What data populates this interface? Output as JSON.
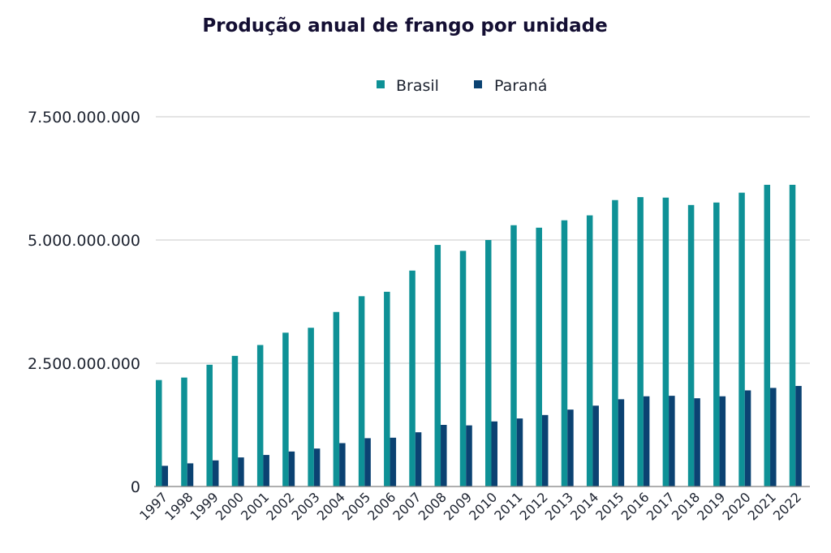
{
  "chart_data": {
    "type": "bar",
    "title": "Produção anual de frango por unidade",
    "xlabel": "",
    "ylabel": "",
    "ylim": [
      0,
      7500000000
    ],
    "yticks": [
      0,
      2500000000,
      5000000000,
      7500000000
    ],
    "ytick_labels": [
      "0",
      "2.500.000.000",
      "5.000.000.000",
      "7.500.000.000"
    ],
    "grid": true,
    "legend_position": "top-center",
    "categories": [
      "1997",
      "1998",
      "1999",
      "2000",
      "2001",
      "2002",
      "2003",
      "2004",
      "2005",
      "2006",
      "2007",
      "2008",
      "2009",
      "2010",
      "2011",
      "2012",
      "2013",
      "2014",
      "2015",
      "2016",
      "2017",
      "2018",
      "2019",
      "2020",
      "2021",
      "2022"
    ],
    "series": [
      {
        "name": "Brasil",
        "color": "#0e9196",
        "values": [
          2160000000,
          2210000000,
          2470000000,
          2650000000,
          2870000000,
          3120000000,
          3220000000,
          3540000000,
          3860000000,
          3950000000,
          4380000000,
          4900000000,
          4780000000,
          5000000000,
          5300000000,
          5250000000,
          5400000000,
          5500000000,
          5810000000,
          5870000000,
          5860000000,
          5710000000,
          5760000000,
          5960000000,
          6120000000,
          6120000000
        ]
      },
      {
        "name": "Paraná",
        "color": "#0b4272",
        "values": [
          420000000,
          470000000,
          530000000,
          590000000,
          640000000,
          710000000,
          770000000,
          880000000,
          980000000,
          990000000,
          1100000000,
          1250000000,
          1240000000,
          1320000000,
          1380000000,
          1450000000,
          1560000000,
          1640000000,
          1770000000,
          1830000000,
          1840000000,
          1790000000,
          1830000000,
          1950000000,
          2000000000,
          2040000000
        ]
      }
    ]
  }
}
